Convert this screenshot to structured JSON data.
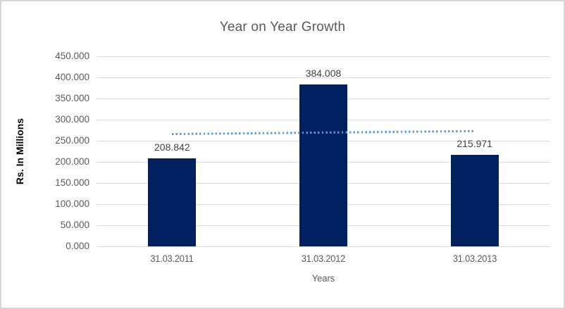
{
  "chart_data": {
    "type": "bar",
    "title": "Year on Year Growth",
    "xlabel": "Years",
    "ylabel": "Rs. In Millions",
    "categories": [
      "31.03.2011",
      "31.03.2012",
      "31.03.2013"
    ],
    "values": [
      208.842,
      384.008,
      215.971
    ],
    "value_labels": [
      "208.842",
      "384.008",
      "215.971"
    ],
    "ylim": [
      0,
      450
    ],
    "ytick_values": [
      450,
      400,
      350,
      300,
      250,
      200,
      150,
      100,
      50,
      0
    ],
    "ytick_labels": [
      "450.000",
      "400.000",
      "350.000",
      "300.000",
      "250.000",
      "200.000",
      "150.000",
      "100.000",
      "50.000",
      "0.000"
    ],
    "grid": "horizontal",
    "legend": "none",
    "trendline": {
      "style": "dotted",
      "start_value": 266.04,
      "end_value": 273.17
    },
    "colors": {
      "bar": "#002060",
      "trendline": "#5b9bd5",
      "title_text": "#595959",
      "tick_text": "#595959",
      "data_label_text": "#404040",
      "gridline": "#d9d9d9",
      "border": "#d6d6d6",
      "background": "#ffffff"
    }
  }
}
